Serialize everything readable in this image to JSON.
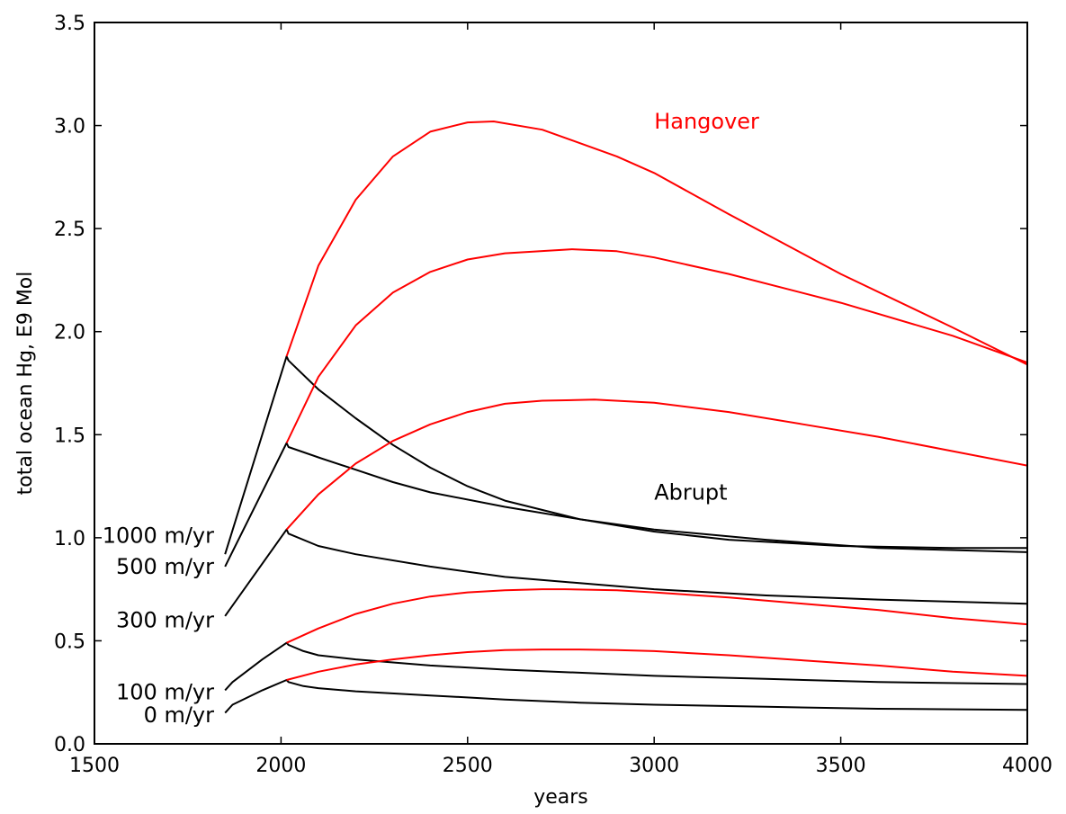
{
  "chart_data": {
    "type": "line",
    "title": "",
    "xlabel": "years",
    "ylabel": "total ocean Hg, E9 Mol",
    "xlim": [
      1500,
      4000
    ],
    "ylim": [
      0.0,
      3.5
    ],
    "xticks": [
      1500,
      2000,
      2500,
      3000,
      3500,
      4000
    ],
    "yticks": [
      0.0,
      0.5,
      1.0,
      1.5,
      2.0,
      2.5,
      3.0,
      3.5
    ],
    "xtick_labels": [
      "1500",
      "2000",
      "2500",
      "3000",
      "3500",
      "4000"
    ],
    "ytick_labels": [
      "0.0",
      "0.5",
      "1.0",
      "1.5",
      "2.0",
      "2.5",
      "3.0",
      "3.5"
    ],
    "grid": false,
    "colors": {
      "hangover": "#ff0000",
      "abrupt": "#000000"
    },
    "annotations": [
      {
        "text": "Hangover",
        "x": 3000,
        "y": 3.02,
        "color": "#ff0000"
      },
      {
        "text": "Abrupt",
        "x": 3000,
        "y": 1.22,
        "color": "#000000"
      }
    ],
    "scenario_labels": [
      {
        "text": "1000 m/yr",
        "y": 1.01
      },
      {
        "text": "500 m/yr",
        "y": 0.86
      },
      {
        "text": "300 m/yr",
        "y": 0.6
      },
      {
        "text": "100 m/yr",
        "y": 0.25
      },
      {
        "text": "0 m/yr",
        "y": 0.14
      }
    ],
    "series": [
      {
        "group": "abrupt",
        "scenario": "1000 m/yr",
        "x": [
          1850,
          2015,
          2020,
          2100,
          2200,
          2300,
          2400,
          2500,
          2600,
          2800,
          3000,
          3200,
          3500,
          3800,
          4000
        ],
        "y": [
          0.92,
          1.88,
          1.86,
          1.72,
          1.58,
          1.45,
          1.34,
          1.25,
          1.18,
          1.09,
          1.03,
          0.99,
          0.96,
          0.95,
          0.95
        ]
      },
      {
        "group": "hangover",
        "scenario": "1000 m/yr",
        "x": [
          2015,
          2100,
          2200,
          2300,
          2400,
          2500,
          2570,
          2700,
          2900,
          3000,
          3200,
          3500,
          3800,
          4000
        ],
        "y": [
          1.88,
          2.32,
          2.64,
          2.85,
          2.97,
          3.015,
          3.02,
          2.98,
          2.85,
          2.77,
          2.57,
          2.28,
          2.02,
          1.84
        ]
      },
      {
        "group": "abrupt",
        "scenario": "500 m/yr",
        "x": [
          1850,
          2015,
          2020,
          2100,
          2200,
          2300,
          2400,
          2600,
          2800,
          3000,
          3300,
          3600,
          4000
        ],
        "y": [
          0.86,
          1.46,
          1.44,
          1.39,
          1.33,
          1.27,
          1.22,
          1.15,
          1.09,
          1.04,
          0.99,
          0.95,
          0.93
        ]
      },
      {
        "group": "hangover",
        "scenario": "500 m/yr",
        "x": [
          2015,
          2100,
          2200,
          2300,
          2400,
          2500,
          2600,
          2780,
          2900,
          3000,
          3200,
          3500,
          3800,
          4000
        ],
        "y": [
          1.46,
          1.78,
          2.03,
          2.19,
          2.29,
          2.35,
          2.38,
          2.4,
          2.39,
          2.36,
          2.28,
          2.14,
          1.98,
          1.85
        ]
      },
      {
        "group": "abrupt",
        "scenario": "300 m/yr",
        "x": [
          1850,
          2015,
          2020,
          2100,
          2200,
          2400,
          2600,
          2800,
          3000,
          3300,
          3600,
          4000
        ],
        "y": [
          0.62,
          1.04,
          1.02,
          0.96,
          0.92,
          0.86,
          0.81,
          0.78,
          0.75,
          0.72,
          0.7,
          0.68
        ]
      },
      {
        "group": "hangover",
        "scenario": "300 m/yr",
        "x": [
          2015,
          2100,
          2200,
          2300,
          2400,
          2500,
          2600,
          2700,
          2840,
          3000,
          3200,
          3400,
          3600,
          3800,
          4000
        ],
        "y": [
          1.04,
          1.21,
          1.36,
          1.47,
          1.55,
          1.61,
          1.65,
          1.665,
          1.67,
          1.655,
          1.61,
          1.55,
          1.49,
          1.42,
          1.35
        ]
      },
      {
        "group": "abrupt",
        "scenario": "100 m/yr",
        "x": [
          1850,
          1870,
          1950,
          2015,
          2020,
          2060,
          2100,
          2200,
          2400,
          2600,
          2800,
          3000,
          3300,
          3600,
          4000
        ],
        "y": [
          0.26,
          0.3,
          0.41,
          0.49,
          0.48,
          0.45,
          0.43,
          0.41,
          0.38,
          0.36,
          0.345,
          0.33,
          0.315,
          0.3,
          0.29
        ]
      },
      {
        "group": "hangover",
        "scenario": "100 m/yr",
        "x": [
          2015,
          2100,
          2200,
          2300,
          2400,
          2500,
          2600,
          2700,
          2760,
          2900,
          3000,
          3200,
          3400,
          3600,
          3800,
          4000
        ],
        "y": [
          0.49,
          0.56,
          0.63,
          0.68,
          0.715,
          0.735,
          0.745,
          0.75,
          0.75,
          0.745,
          0.735,
          0.71,
          0.68,
          0.65,
          0.61,
          0.58
        ]
      },
      {
        "group": "abrupt",
        "scenario": "0 m/yr",
        "x": [
          1850,
          1870,
          1950,
          2015,
          2020,
          2060,
          2100,
          2200,
          2400,
          2600,
          2800,
          3000,
          3300,
          3600,
          4000
        ],
        "y": [
          0.15,
          0.19,
          0.26,
          0.31,
          0.3,
          0.28,
          0.27,
          0.255,
          0.235,
          0.215,
          0.2,
          0.19,
          0.18,
          0.17,
          0.165
        ]
      },
      {
        "group": "hangover",
        "scenario": "0 m/yr",
        "x": [
          2015,
          2100,
          2200,
          2300,
          2400,
          2500,
          2600,
          2700,
          2800,
          2900,
          3000,
          3200,
          3400,
          3600,
          3800,
          4000
        ],
        "y": [
          0.31,
          0.35,
          0.385,
          0.41,
          0.43,
          0.445,
          0.455,
          0.458,
          0.458,
          0.455,
          0.45,
          0.43,
          0.405,
          0.38,
          0.35,
          0.33
        ]
      }
    ]
  }
}
